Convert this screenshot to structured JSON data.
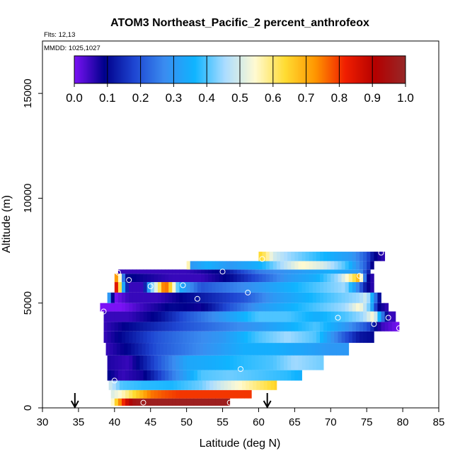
{
  "chart_data": {
    "type": "heatmap",
    "title": "ATOM3 Northeast_Pacific_2 percent_anthrofeox",
    "annotations": [
      "Flts: 12,13",
      "MMDD: 1025,1027"
    ],
    "xlabel": "Latitude (deg N)",
    "ylabel": "Altitude (m)",
    "xlim": [
      30,
      85
    ],
    "ylim": [
      0,
      17500
    ],
    "x_ticks": [
      30,
      35,
      40,
      45,
      50,
      55,
      60,
      65,
      70,
      75,
      80,
      85
    ],
    "y_ticks": [
      0,
      5000,
      10000,
      15000
    ],
    "colorbar": {
      "ticks": [
        0.0,
        0.1,
        0.2,
        0.3,
        0.4,
        0.5,
        0.6,
        0.7,
        0.8,
        0.9,
        1.0
      ],
      "tick_labels": [
        "0.0",
        "0.1",
        "0.2",
        "0.3",
        "0.4",
        "0.5",
        "0.6",
        "0.7",
        "0.8",
        "0.9",
        "1.0"
      ],
      "colors": [
        "#7b12f5",
        "#00008b",
        "#1e46d2",
        "#3a8cf0",
        "#0fb4ff",
        "#aadcff",
        "#fffad2",
        "#ffdc32",
        "#ff9600",
        "#f01e00",
        "#b40000",
        "#962828"
      ]
    },
    "bands": [
      {
        "alt_min": 100,
        "alt_max": 450,
        "profile": [
          [
            39.5,
            0.5
          ],
          [
            40.5,
            0.7
          ],
          [
            41.5,
            0.85
          ],
          [
            42.5,
            0.95
          ],
          [
            44,
            0.98
          ],
          [
            56,
            0.98
          ]
        ]
      },
      {
        "alt_min": 450,
        "alt_max": 850,
        "profile": [
          [
            39.5,
            0.5
          ],
          [
            41,
            0.55
          ],
          [
            43,
            0.65
          ],
          [
            45,
            0.75
          ],
          [
            47,
            0.78
          ],
          [
            49,
            0.8
          ],
          [
            59,
            0.8
          ]
        ]
      },
      {
        "alt_min": 850,
        "alt_max": 1300,
        "profile": [
          [
            39.2,
            0.5
          ],
          [
            41,
            0.4
          ],
          [
            44,
            0.38
          ],
          [
            48,
            0.37
          ],
          [
            52,
            0.42
          ],
          [
            55,
            0.5
          ],
          [
            58,
            0.56
          ],
          [
            60,
            0.6
          ],
          [
            62.5,
            0.65
          ]
        ]
      },
      {
        "alt_min": 1300,
        "alt_max": 1800,
        "profile": [
          [
            39,
            0.1
          ],
          [
            41,
            0.05
          ],
          [
            44,
            0.08
          ],
          [
            48,
            0.25
          ],
          [
            52,
            0.4
          ],
          [
            56,
            0.42
          ],
          [
            60,
            0.4
          ],
          [
            64,
            0.38
          ],
          [
            66,
            0.35
          ]
        ]
      },
      {
        "alt_min": 1800,
        "alt_max": 2500,
        "profile": [
          [
            39,
            0.07
          ],
          [
            42,
            0.05
          ],
          [
            46,
            0.2
          ],
          [
            50,
            0.33
          ],
          [
            54,
            0.35
          ],
          [
            58,
            0.38
          ],
          [
            62,
            0.4
          ],
          [
            65,
            0.45
          ],
          [
            69,
            0.42
          ]
        ]
      },
      {
        "alt_min": 2500,
        "alt_max": 3100,
        "profile": [
          [
            38.8,
            0.05
          ],
          [
            42,
            0.1
          ],
          [
            46,
            0.2
          ],
          [
            50,
            0.25
          ],
          [
            54,
            0.3
          ],
          [
            58,
            0.35
          ],
          [
            62,
            0.35
          ],
          [
            66,
            0.33
          ],
          [
            70,
            0.3
          ],
          [
            72.5,
            0.3
          ]
        ]
      },
      {
        "alt_min": 3100,
        "alt_max": 3650,
        "profile": [
          [
            38.5,
            0.05
          ],
          [
            42,
            0.12
          ],
          [
            46,
            0.2
          ],
          [
            50,
            0.25
          ],
          [
            55,
            0.3
          ],
          [
            60,
            0.4
          ],
          [
            64,
            0.45
          ],
          [
            68,
            0.4
          ],
          [
            72,
            0.2
          ],
          [
            74,
            0.12
          ],
          [
            76,
            0.1
          ]
        ]
      },
      {
        "alt_min": 3650,
        "alt_max": 4100,
        "profile": [
          [
            38.5,
            0.05
          ],
          [
            42,
            0.1
          ],
          [
            46,
            0.15
          ],
          [
            50,
            0.2
          ],
          [
            55,
            0.25
          ],
          [
            60,
            0.3
          ],
          [
            64,
            0.35
          ],
          [
            68,
            0.4
          ],
          [
            72,
            0.3
          ],
          [
            75,
            0.2
          ],
          [
            77,
            0.05
          ],
          [
            79.5,
            0.0
          ]
        ]
      },
      {
        "alt_min": 4100,
        "alt_max": 4600,
        "profile": [
          [
            38.5,
            0.05
          ],
          [
            42,
            0.05
          ],
          [
            46,
            0.1
          ],
          [
            50,
            0.2
          ],
          [
            55,
            0.3
          ],
          [
            60,
            0.4
          ],
          [
            64,
            0.4
          ],
          [
            68,
            0.35
          ],
          [
            72,
            0.4
          ],
          [
            74.5,
            0.45
          ],
          [
            76,
            0.55
          ],
          [
            78,
            0.05
          ],
          [
            79,
            0.05
          ]
        ]
      },
      {
        "alt_min": 4600,
        "alt_max": 5000,
        "profile": [
          [
            38,
            0.0
          ],
          [
            41,
            0.0
          ],
          [
            44,
            0.05
          ],
          [
            48,
            0.1
          ],
          [
            52,
            0.08
          ],
          [
            56,
            0.2
          ],
          [
            60,
            0.3
          ],
          [
            64,
            0.35
          ],
          [
            68,
            0.4
          ],
          [
            72,
            0.45
          ],
          [
            74,
            0.55
          ],
          [
            75.5,
            0.4
          ],
          [
            76.5,
            0.1
          ],
          [
            78,
            0.05
          ]
        ]
      },
      {
        "alt_min": 5000,
        "alt_max": 5500,
        "profile": [
          [
            39,
            0.4
          ],
          [
            40,
            0.0
          ],
          [
            42,
            0.05
          ],
          [
            46,
            0.05
          ],
          [
            50,
            0.1
          ],
          [
            54,
            0.15
          ],
          [
            58,
            0.2
          ],
          [
            62,
            0.3
          ],
          [
            66,
            0.35
          ],
          [
            70,
            0.4
          ],
          [
            74,
            0.45
          ],
          [
            75,
            0.5
          ],
          [
            76,
            0.3
          ],
          [
            77,
            0.05
          ]
        ]
      },
      {
        "alt_min": 5500,
        "alt_max": 6000,
        "profile": [
          [
            40,
            0.95
          ],
          [
            40.7,
            0.65
          ],
          [
            41.3,
            0.3
          ],
          [
            42,
            0.05
          ],
          [
            44,
            0.05
          ],
          [
            45,
            0.4
          ],
          [
            46,
            0.55
          ],
          [
            47,
            0.8
          ],
          [
            48,
            0.6
          ],
          [
            49,
            0.35
          ],
          [
            52,
            0.2
          ],
          [
            56,
            0.25
          ],
          [
            60,
            0.3
          ],
          [
            64,
            0.35
          ],
          [
            68,
            0.4
          ],
          [
            72,
            0.45
          ],
          [
            73.5,
            0.3
          ],
          [
            75,
            0.1
          ],
          [
            76,
            0.05
          ]
        ]
      },
      {
        "alt_min": 6000,
        "alt_max": 6400,
        "profile": [
          [
            40,
            0.5
          ],
          [
            40.4,
            0.85
          ],
          [
            40.8,
            0.5
          ],
          [
            41.5,
            0.1
          ],
          [
            44,
            0.08
          ],
          [
            48,
            0.05
          ],
          [
            52,
            0.05
          ],
          [
            56,
            0.1
          ],
          [
            60,
            0.2
          ],
          [
            64,
            0.3
          ],
          [
            68,
            0.35
          ],
          [
            71,
            0.45
          ],
          [
            73,
            0.6
          ],
          [
            74,
            0.7
          ],
          [
            75,
            0.1
          ],
          [
            76,
            0.05
          ]
        ]
      },
      {
        "alt_min": 6400,
        "alt_max": 6600,
        "profile": [
          [
            40.5,
            0.05
          ],
          [
            45,
            0.05
          ],
          [
            50,
            0.05
          ],
          [
            55,
            0.1
          ],
          [
            60,
            0.25
          ],
          [
            65,
            0.3
          ],
          [
            70,
            0.35
          ],
          [
            74,
            0.3
          ],
          [
            75.5,
            0.1
          ]
        ]
      },
      {
        "alt_min": 6600,
        "alt_max": 7000,
        "profile": [
          [
            50,
            0.75
          ],
          [
            50.6,
            0.3
          ],
          [
            53,
            0.35
          ],
          [
            56,
            0.3
          ],
          [
            60,
            0.35
          ],
          [
            63,
            0.45
          ],
          [
            66,
            0.55
          ],
          [
            69,
            0.5
          ],
          [
            72,
            0.4
          ],
          [
            75,
            0.2
          ],
          [
            76,
            0.05
          ]
        ]
      },
      {
        "alt_min": 7000,
        "alt_max": 7450,
        "profile": [
          [
            60,
            0.65
          ],
          [
            61,
            0.6
          ],
          [
            62,
            0.5
          ],
          [
            64,
            0.45
          ],
          [
            67,
            0.4
          ],
          [
            70,
            0.35
          ],
          [
            73,
            0.3
          ],
          [
            75,
            0.2
          ],
          [
            76,
            0.1
          ],
          [
            77.5,
            0.05
          ]
        ]
      }
    ],
    "points": [
      [
        56.0,
        250
      ],
      [
        44.0,
        250
      ],
      [
        40.0,
        1300
      ],
      [
        57.5,
        1850
      ],
      [
        38.5,
        4600
      ],
      [
        71.0,
        4300
      ],
      [
        76.0,
        4000
      ],
      [
        78.0,
        4300
      ],
      [
        79.5,
        3800
      ],
      [
        51.5,
        5200
      ],
      [
        58.5,
        5500
      ],
      [
        45.0,
        5800
      ],
      [
        49.5,
        5850
      ],
      [
        42.0,
        6100
      ],
      [
        40.5,
        6450
      ],
      [
        55.0,
        6500
      ],
      [
        74.0,
        6300
      ],
      [
        77.0,
        7400
      ],
      [
        60.5,
        7100
      ]
    ],
    "arrows": [
      34.5,
      61.2
    ]
  }
}
